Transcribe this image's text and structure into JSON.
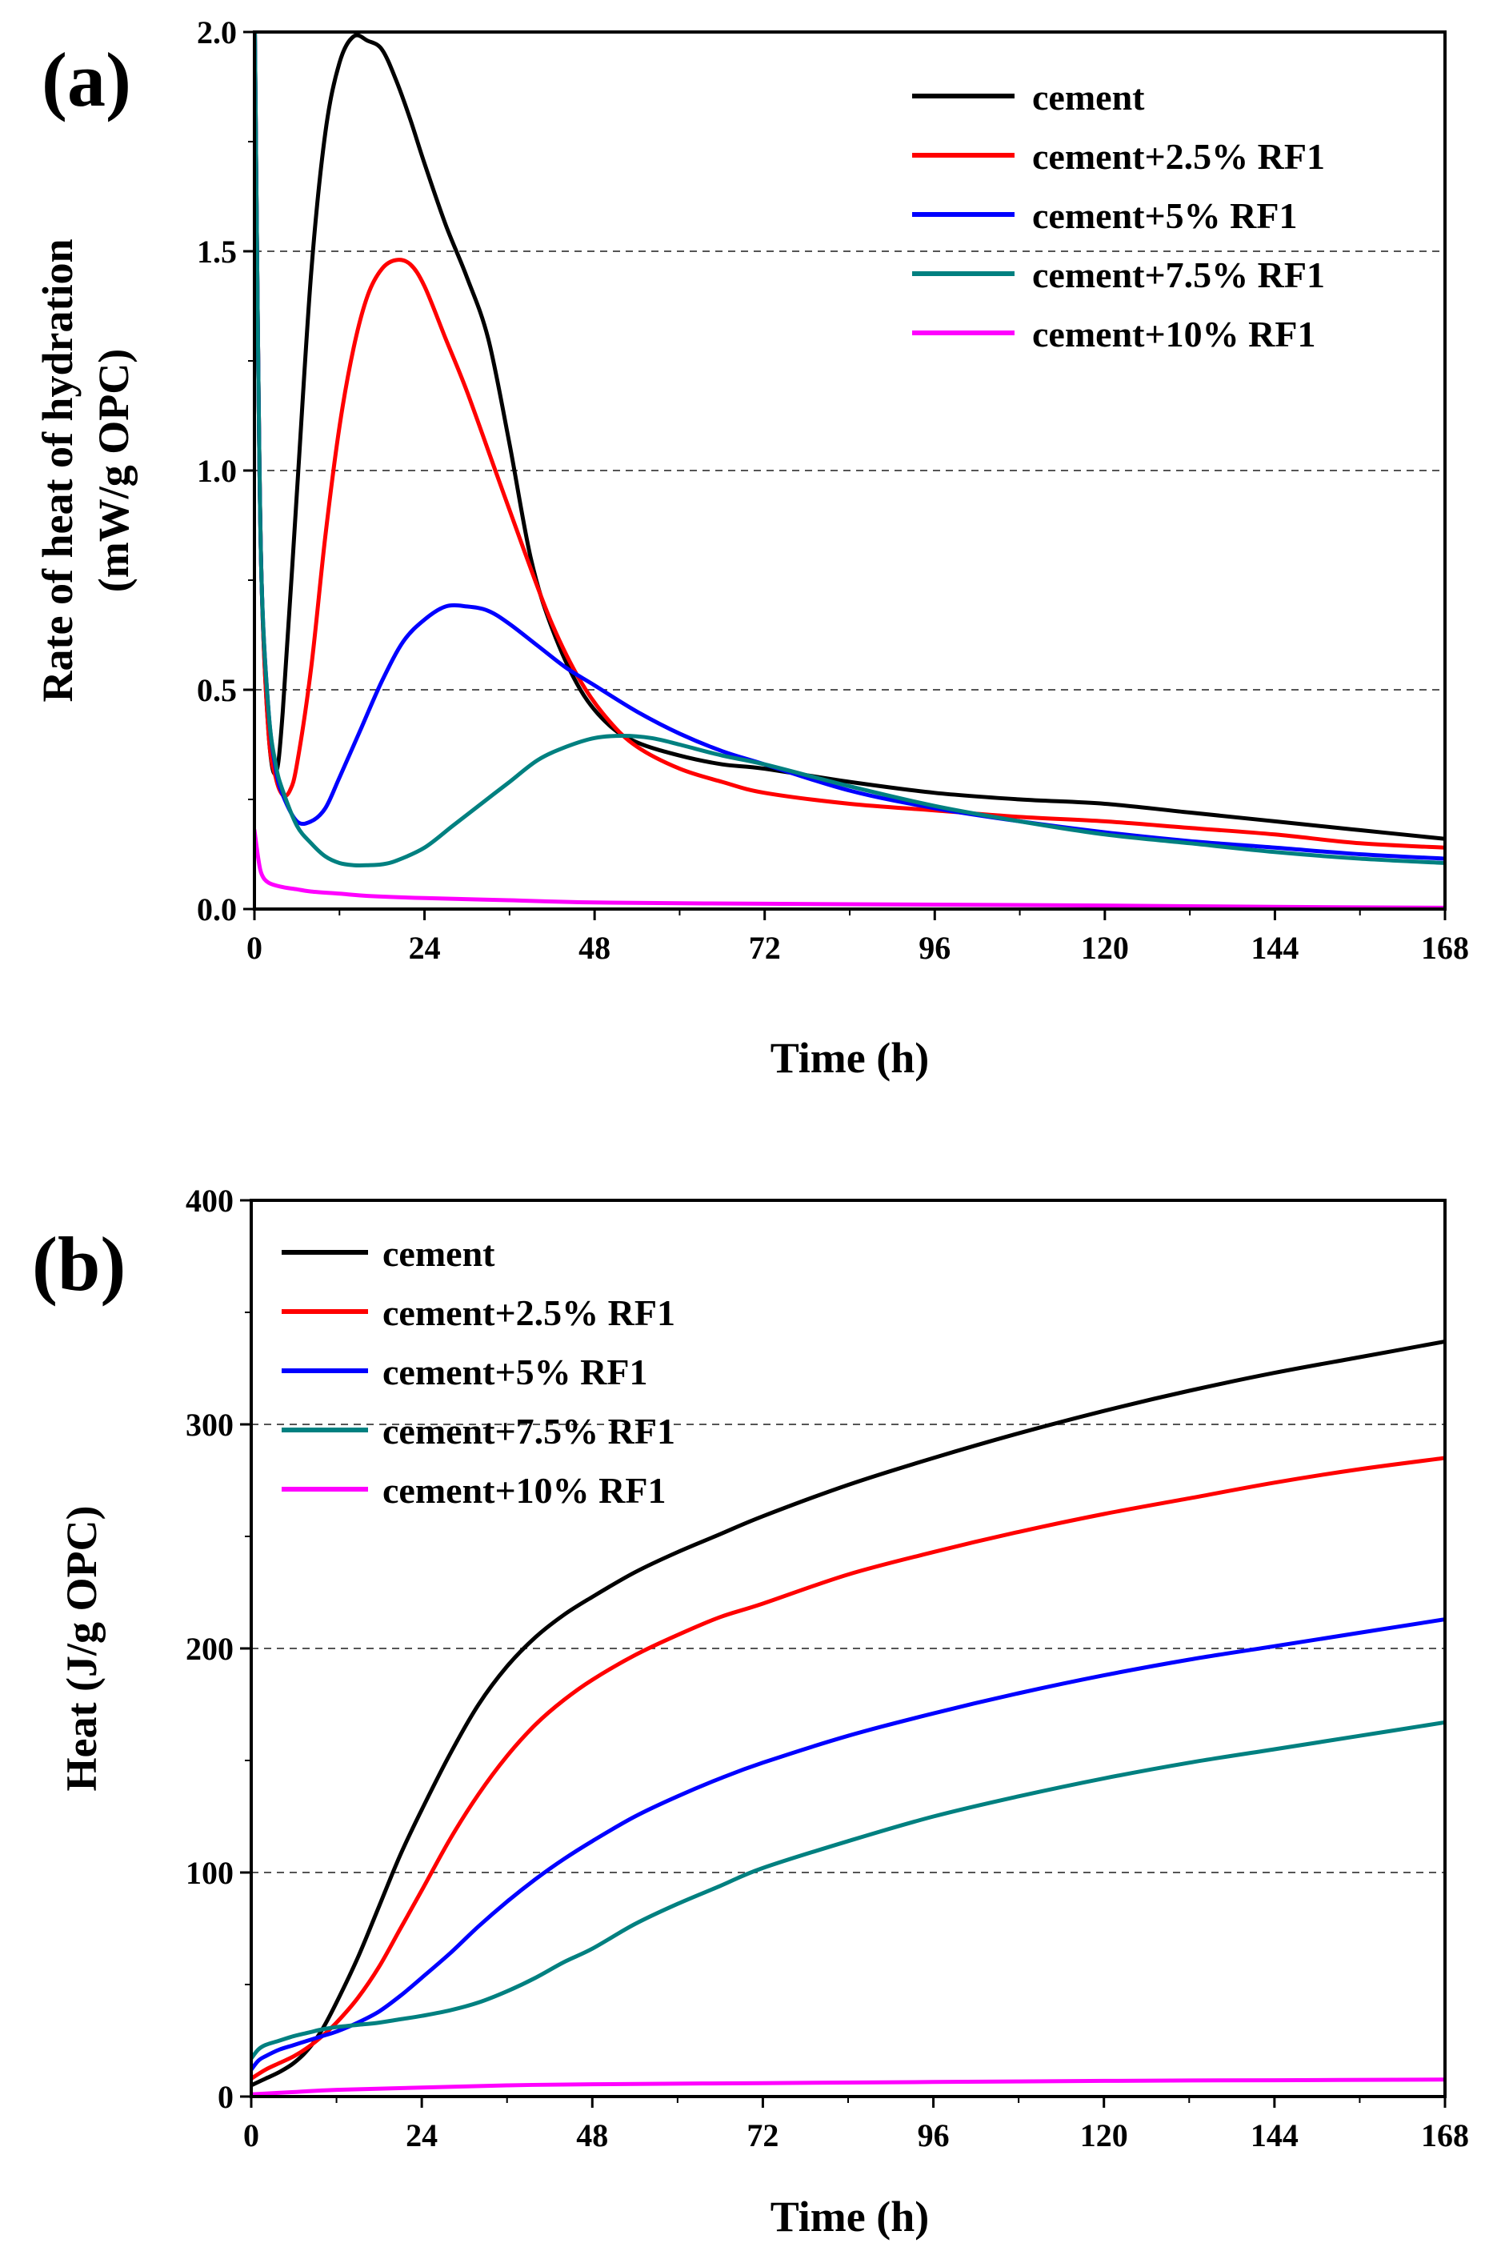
{
  "colors": {
    "cement": "#000000",
    "cement_2_5": "#ff0000",
    "cement_5": "#0000ff",
    "cement_7_5": "#008080",
    "cement_10": "#ff00ff",
    "grid": "#555555"
  },
  "chart_data": [
    {
      "type": "line",
      "panel_label": "(a)",
      "xlabel": "Time (h)",
      "ylabel_line1": "Rate of heat of hydration",
      "ylabel_line2": "(mW/g OPC)",
      "xlim": [
        0,
        168
      ],
      "ylim": [
        0,
        2.0
      ],
      "xticks": [
        0,
        24,
        48,
        72,
        96,
        120,
        144,
        168
      ],
      "xtick_labels": [
        "0",
        "24",
        "48",
        "72",
        "96",
        "120",
        "144",
        "168"
      ],
      "yticks": [
        0,
        0.5,
        1.0,
        1.5,
        2.0
      ],
      "ytick_labels": [
        "0.0",
        "0.5",
        "1.0",
        "1.5",
        "2.0"
      ],
      "grid": "horizontal dashed",
      "legend_position": "top-right",
      "series": [
        {
          "name": "cement",
          "color_key": "cement",
          "x": [
            0,
            0.5,
            1,
            2,
            3,
            4,
            6,
            8,
            10,
            12,
            14,
            16,
            18,
            20,
            22,
            24,
            27,
            30,
            33,
            36,
            39,
            42,
            46,
            50,
            54,
            60,
            66,
            72,
            84,
            96,
            108,
            120,
            132,
            144,
            156,
            168
          ],
          "y": [
            2.1,
            1.3,
            0.75,
            0.4,
            0.31,
            0.45,
            0.95,
            1.45,
            1.77,
            1.93,
            1.99,
            1.98,
            1.96,
            1.89,
            1.8,
            1.7,
            1.56,
            1.44,
            1.3,
            1.06,
            0.8,
            0.64,
            0.5,
            0.42,
            0.38,
            0.35,
            0.33,
            0.32,
            0.29,
            0.265,
            0.25,
            0.24,
            0.22,
            0.2,
            0.18,
            0.16
          ]
        },
        {
          "name": "cement+2.5% RF1",
          "color_key": "cement_2_5",
          "x": [
            0,
            0.5,
            1,
            2,
            3,
            4,
            5,
            6,
            8,
            10,
            12,
            14,
            16,
            18,
            20,
            22,
            24,
            27,
            30,
            34,
            38,
            42,
            46,
            50,
            54,
            60,
            66,
            72,
            84,
            96,
            108,
            120,
            132,
            144,
            156,
            168
          ],
          "y": [
            2.1,
            1.3,
            0.75,
            0.4,
            0.3,
            0.26,
            0.27,
            0.33,
            0.55,
            0.85,
            1.1,
            1.28,
            1.4,
            1.46,
            1.48,
            1.47,
            1.42,
            1.3,
            1.18,
            1.0,
            0.82,
            0.65,
            0.52,
            0.43,
            0.37,
            0.32,
            0.29,
            0.265,
            0.24,
            0.225,
            0.21,
            0.2,
            0.185,
            0.17,
            0.15,
            0.14
          ]
        },
        {
          "name": "cement+5% RF1",
          "color_key": "cement_5",
          "x": [
            0,
            0.5,
            1,
            2,
            3,
            4,
            6,
            8,
            10,
            12,
            15,
            18,
            21,
            24,
            27,
            30,
            33,
            36,
            40,
            44,
            48,
            54,
            60,
            66,
            72,
            84,
            96,
            108,
            120,
            132,
            144,
            156,
            168
          ],
          "y": [
            2.1,
            1.3,
            0.75,
            0.45,
            0.32,
            0.26,
            0.2,
            0.2,
            0.23,
            0.3,
            0.41,
            0.52,
            0.61,
            0.66,
            0.69,
            0.69,
            0.68,
            0.65,
            0.6,
            0.55,
            0.51,
            0.45,
            0.4,
            0.36,
            0.33,
            0.27,
            0.23,
            0.2,
            0.175,
            0.155,
            0.14,
            0.125,
            0.115
          ]
        },
        {
          "name": "cement+7.5% RF1",
          "color_key": "cement_7_5",
          "x": [
            0,
            0.5,
            1,
            2,
            3,
            4,
            6,
            8,
            10,
            12,
            14,
            16,
            18,
            20,
            24,
            28,
            32,
            36,
            40,
            44,
            48,
            52,
            56,
            60,
            66,
            72,
            84,
            96,
            108,
            120,
            132,
            144,
            156,
            168
          ],
          "y": [
            2.1,
            1.3,
            0.75,
            0.45,
            0.33,
            0.27,
            0.19,
            0.15,
            0.12,
            0.105,
            0.1,
            0.1,
            0.102,
            0.11,
            0.14,
            0.19,
            0.24,
            0.29,
            0.34,
            0.37,
            0.39,
            0.395,
            0.39,
            0.375,
            0.35,
            0.33,
            0.28,
            0.235,
            0.2,
            0.17,
            0.15,
            0.13,
            0.115,
            0.105
          ]
        },
        {
          "name": "cement+10% RF1",
          "color_key": "cement_10",
          "x": [
            0,
            0.5,
            1,
            2,
            4,
            6,
            8,
            12,
            16,
            24,
            36,
            48,
            72,
            96,
            120,
            144,
            168
          ],
          "y": [
            0.18,
            0.12,
            0.08,
            0.06,
            0.05,
            0.045,
            0.04,
            0.035,
            0.03,
            0.025,
            0.02,
            0.015,
            0.012,
            0.01,
            0.008,
            0.005,
            0.003
          ]
        }
      ]
    },
    {
      "type": "line",
      "panel_label": "(b)",
      "xlabel": "Time (h)",
      "ylabel": "Heat (J/g OPC)",
      "xlim": [
        0,
        168
      ],
      "ylim": [
        0,
        400
      ],
      "xticks": [
        0,
        24,
        48,
        72,
        96,
        120,
        144,
        168
      ],
      "xtick_labels": [
        "0",
        "24",
        "48",
        "72",
        "96",
        "120",
        "144",
        "168"
      ],
      "yticks": [
        0,
        100,
        200,
        300,
        400
      ],
      "ytick_labels": [
        "0",
        "100",
        "200",
        "300",
        "400"
      ],
      "grid": "horizontal dashed",
      "legend_position": "top-left",
      "series": [
        {
          "name": "cement",
          "color_key": "cement",
          "x": [
            0,
            2,
            4,
            6,
            8,
            10,
            12,
            15,
            18,
            21,
            24,
            28,
            32,
            36,
            40,
            44,
            48,
            54,
            60,
            66,
            72,
            84,
            96,
            108,
            120,
            132,
            144,
            156,
            168
          ],
          "y": [
            5,
            8,
            11,
            15,
            21,
            30,
            42,
            62,
            85,
            108,
            128,
            153,
            175,
            192,
            205,
            215,
            223,
            234,
            243,
            251,
            259,
            273,
            285,
            296,
            306,
            315,
            323,
            330,
            337
          ]
        },
        {
          "name": "cement+2.5% RF1",
          "color_key": "cement_2_5",
          "x": [
            0,
            2,
            4,
            6,
            8,
            10,
            12,
            15,
            18,
            21,
            24,
            28,
            32,
            36,
            40,
            44,
            48,
            54,
            60,
            66,
            72,
            84,
            96,
            108,
            120,
            132,
            144,
            156,
            168
          ],
          "y": [
            8,
            12,
            15,
            18,
            22,
            27,
            33,
            44,
            58,
            75,
            92,
            115,
            135,
            152,
            166,
            177,
            186,
            197,
            206,
            214,
            220,
            233,
            243,
            252,
            260,
            267,
            274,
            280,
            285
          ]
        },
        {
          "name": "cement+5% RF1",
          "color_key": "cement_5",
          "x": [
            0,
            1,
            2,
            4,
            6,
            8,
            10,
            12,
            15,
            18,
            21,
            24,
            28,
            32,
            36,
            40,
            44,
            48,
            54,
            60,
            66,
            72,
            84,
            96,
            108,
            120,
            132,
            144,
            156,
            168
          ],
          "y": [
            12,
            16,
            18,
            21,
            23,
            25,
            27,
            29,
            33,
            38,
            45,
            53,
            64,
            76,
            87,
            97,
            106,
            114,
            125,
            134,
            142,
            149,
            161,
            171,
            180,
            188,
            195,
            201,
            207,
            213
          ]
        },
        {
          "name": "cement+7.5% RF1",
          "color_key": "cement_7_5",
          "x": [
            0,
            1,
            2,
            4,
            6,
            8,
            10,
            12,
            15,
            18,
            21,
            24,
            28,
            32,
            36,
            40,
            44,
            48,
            54,
            60,
            66,
            72,
            84,
            96,
            108,
            120,
            132,
            144,
            156,
            168
          ],
          "y": [
            17,
            21,
            23,
            25,
            27,
            28.5,
            30,
            31,
            32,
            33,
            34.5,
            36,
            38.5,
            42,
            47,
            53,
            60,
            66,
            77,
            86,
            94,
            102,
            114,
            125,
            134,
            142,
            149,
            155,
            161,
            167
          ]
        },
        {
          "name": "cement+10% RF1",
          "color_key": "cement_10",
          "x": [
            0,
            6,
            12,
            24,
            36,
            48,
            72,
            96,
            120,
            144,
            168
          ],
          "y": [
            1,
            2,
            3,
            4,
            5,
            5.5,
            6,
            6.5,
            7,
            7.3,
            7.6
          ]
        }
      ]
    }
  ]
}
